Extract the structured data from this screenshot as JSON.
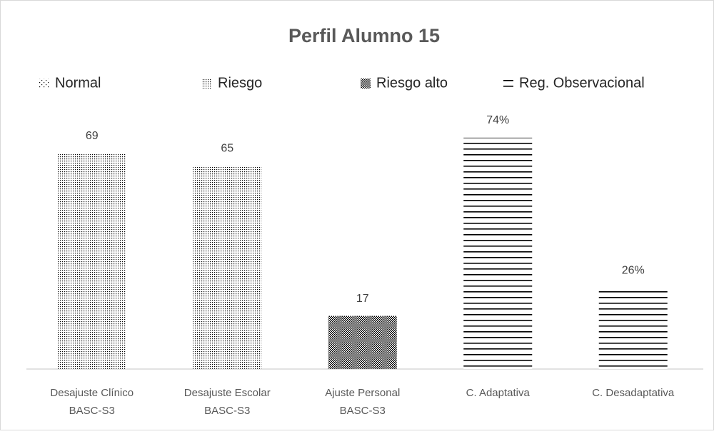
{
  "chart_data": {
    "type": "bar",
    "title": "Perfil Alumno 15",
    "categories": [
      [
        "Desajuste Clínico",
        "BASC-S3"
      ],
      [
        "Desajuste Escolar",
        "BASC-S3"
      ],
      [
        "Ajuste Personal",
        "BASC-S3"
      ],
      [
        "C. Adaptativa"
      ],
      [
        "C. Desadaptativa"
      ]
    ],
    "series": [
      {
        "name": "Normal",
        "pattern": "sparse-dots",
        "color": "#000000",
        "values": [
          null,
          null,
          null,
          null,
          null
        ]
      },
      {
        "name": "Riesgo",
        "pattern": "dense-dots",
        "color": "#000000",
        "values": [
          69,
          65,
          null,
          null,
          null
        ],
        "value_labels": [
          "69",
          "65",
          null,
          null,
          null
        ]
      },
      {
        "name": "Riesgo alto",
        "pattern": "checker",
        "color": "#000000",
        "values": [
          null,
          null,
          17,
          null,
          null
        ],
        "value_labels": [
          null,
          null,
          "17",
          null,
          null
        ]
      },
      {
        "name": "Reg. Observacional",
        "pattern": "horizontal-lines",
        "color": "#000000",
        "values": [
          null,
          null,
          null,
          74,
          26
        ],
        "value_labels": [
          null,
          null,
          null,
          "74%",
          "26%"
        ]
      }
    ],
    "legend": "top"
  }
}
